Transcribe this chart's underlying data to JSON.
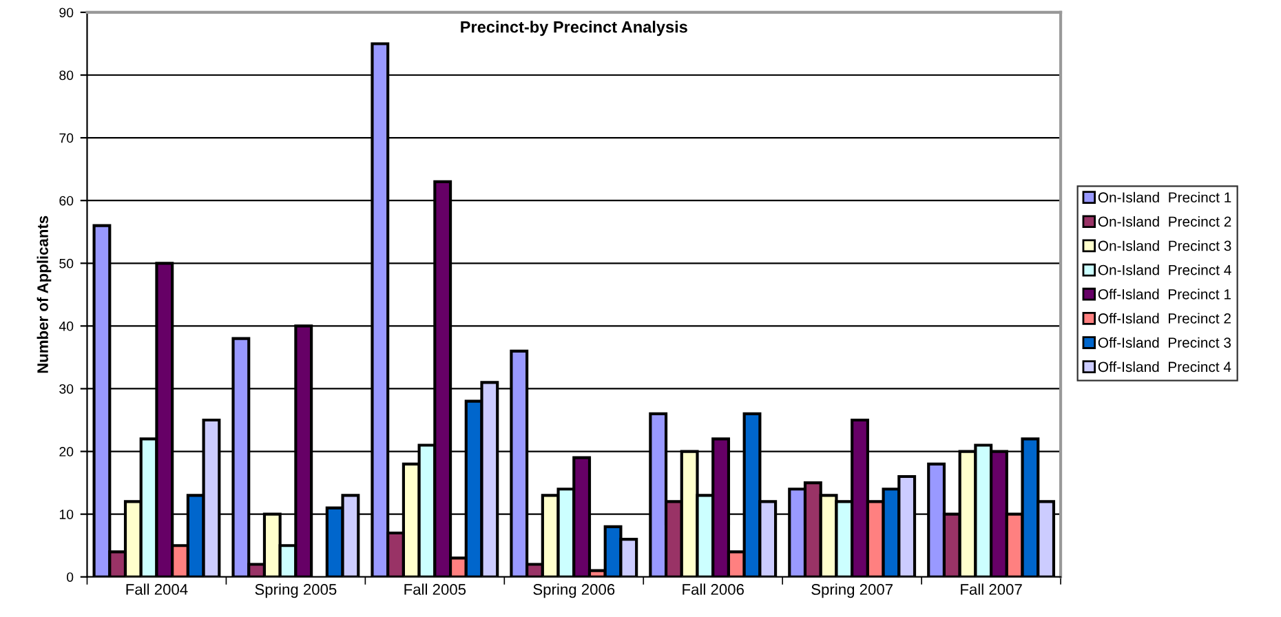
{
  "chart_data": {
    "type": "bar",
    "title": "Precinct-by Precinct Analysis",
    "ylabel": "Number of Applicants",
    "categories": [
      "Fall 2004",
      "Spring 2005",
      "Fall 2005",
      "Spring 2006",
      "Fall 2006",
      "Spring 2007",
      "Fall 2007"
    ],
    "series": [
      {
        "name": "On-Island  Precinct 1",
        "color": "#9999ff",
        "values": [
          56,
          38,
          85,
          36,
          26,
          14,
          18
        ]
      },
      {
        "name": "On-Island  Precinct 2",
        "color": "#993366",
        "values": [
          4,
          2,
          7,
          2,
          12,
          15,
          10
        ]
      },
      {
        "name": "On-Island  Precinct 3",
        "color": "#ffffcc",
        "values": [
          12,
          10,
          18,
          13,
          20,
          13,
          20
        ]
      },
      {
        "name": "On-Island  Precinct 4",
        "color": "#ccffff",
        "values": [
          22,
          5,
          21,
          14,
          13,
          12,
          21
        ]
      },
      {
        "name": "Off-Island  Precinct 1",
        "color": "#660066",
        "values": [
          50,
          40,
          63,
          19,
          22,
          25,
          20
        ]
      },
      {
        "name": "Off-Island  Precinct 2",
        "color": "#ff8080",
        "values": [
          5,
          null,
          3,
          1,
          4,
          12,
          10
        ]
      },
      {
        "name": "Off-Island  Precinct 3",
        "color": "#0066cc",
        "values": [
          13,
          11,
          28,
          8,
          26,
          14,
          22
        ]
      },
      {
        "name": "Off-Island  Precinct 4",
        "color": "#ccccff",
        "values": [
          25,
          13,
          31,
          6,
          12,
          16,
          12
        ]
      }
    ],
    "ylim": [
      0,
      90
    ],
    "yticks": [
      0,
      10,
      20,
      30,
      40,
      50,
      60,
      70,
      80,
      90
    ],
    "grid": "y",
    "legend": "right"
  }
}
